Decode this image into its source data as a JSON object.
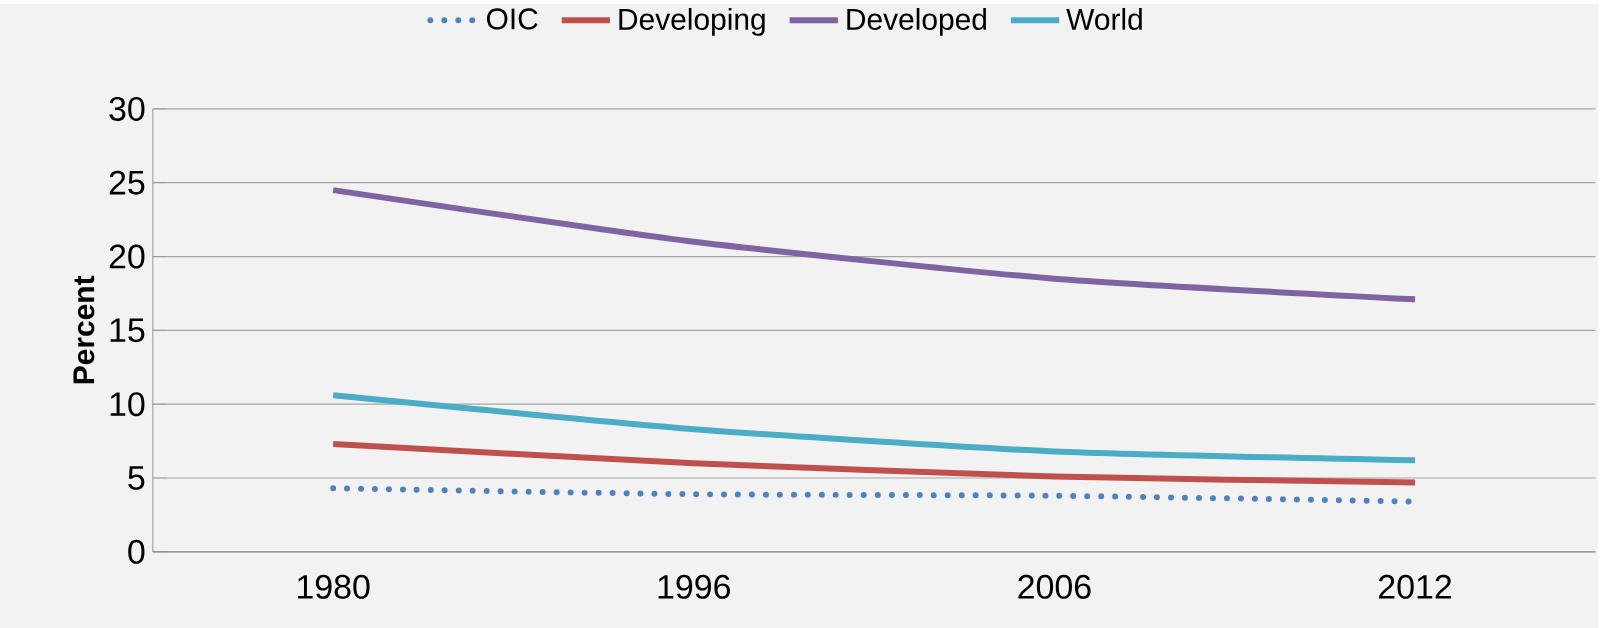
{
  "chart_data": {
    "type": "line",
    "ylabel": "Percent",
    "categories": [
      "1980",
      "1996",
      "2006",
      "2012"
    ],
    "series": [
      {
        "name": "OIC",
        "color": "#4f81bd",
        "line_style": "dotted",
        "values": [
          4.3,
          3.9,
          3.8,
          3.4
        ]
      },
      {
        "name": "Developing",
        "color": "#c0504d",
        "values": [
          7.3,
          6.0,
          5.1,
          4.7
        ]
      },
      {
        "name": "Developed",
        "color": "#8064a2",
        "values": [
          24.5,
          21.0,
          18.5,
          17.1
        ]
      },
      {
        "name": "World",
        "color": "#4bacc6",
        "values": [
          10.6,
          8.3,
          6.8,
          6.2
        ]
      }
    ],
    "ylim": [
      0,
      30
    ],
    "yticks": [
      0,
      5,
      10,
      15,
      20,
      25,
      30
    ],
    "grid": "y",
    "legend": "top"
  }
}
